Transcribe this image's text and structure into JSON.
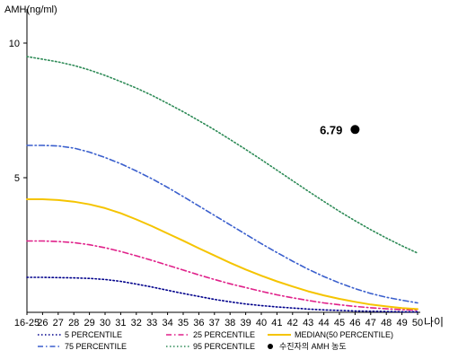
{
  "chart_data": {
    "type": "line",
    "ylabel": "AMH(ng/ml)",
    "xlabel": "나이",
    "ylim": [
      0,
      11
    ],
    "yticks": [
      5,
      10
    ],
    "categories": [
      "16-25",
      "26",
      "27",
      "28",
      "29",
      "30",
      "31",
      "32",
      "33",
      "34",
      "35",
      "36",
      "37",
      "38",
      "39",
      "40",
      "41",
      "42",
      "43",
      "44",
      "45",
      "46",
      "47",
      "48",
      "49",
      "50"
    ],
    "grid": false,
    "legend_position": "bottom",
    "series": [
      {
        "name": "5 PERCENTILE",
        "color": "#00008b",
        "dash": "dotted",
        "values": [
          1.3,
          1.3,
          1.29,
          1.28,
          1.26,
          1.22,
          1.15,
          1.05,
          0.94,
          0.82,
          0.7,
          0.59,
          0.48,
          0.39,
          0.31,
          0.25,
          0.2,
          0.16,
          0.12,
          0.09,
          0.07,
          0.05,
          0.04,
          0.03,
          0.02,
          0.02
        ]
      },
      {
        "name": "25 PERCENTILE",
        "color": "#e0218a",
        "dash": "dashdot",
        "values": [
          2.65,
          2.65,
          2.63,
          2.59,
          2.51,
          2.4,
          2.26,
          2.1,
          1.93,
          1.75,
          1.57,
          1.39,
          1.22,
          1.06,
          0.92,
          0.78,
          0.65,
          0.54,
          0.44,
          0.35,
          0.28,
          0.22,
          0.17,
          0.13,
          0.1,
          0.08
        ]
      },
      {
        "name": "MEDIAN(50 PERCENTILE)",
        "color": "#f5c400",
        "dash": "solid",
        "values": [
          4.2,
          4.2,
          4.17,
          4.11,
          4.01,
          3.87,
          3.68,
          3.45,
          3.2,
          2.93,
          2.66,
          2.38,
          2.11,
          1.84,
          1.59,
          1.36,
          1.15,
          0.96,
          0.78,
          0.63,
          0.5,
          0.39,
          0.29,
          0.22,
          0.16,
          0.12
        ]
      },
      {
        "name": "75 PERCENTILE",
        "color": "#3a5fcd",
        "dash": "dashdot",
        "values": [
          6.2,
          6.2,
          6.18,
          6.1,
          5.95,
          5.75,
          5.52,
          5.25,
          4.96,
          4.64,
          4.3,
          3.95,
          3.6,
          3.25,
          2.9,
          2.55,
          2.22,
          1.9,
          1.6,
          1.33,
          1.09,
          0.88,
          0.7,
          0.56,
          0.45,
          0.35
        ]
      },
      {
        "name": "95 PERCENTILE",
        "color": "#2e8b57",
        "dash": "dotted",
        "values": [
          9.5,
          9.4,
          9.3,
          9.17,
          9.0,
          8.8,
          8.57,
          8.33,
          8.06,
          7.76,
          7.45,
          7.12,
          6.78,
          6.42,
          6.05,
          5.67,
          5.28,
          4.89,
          4.5,
          4.12,
          3.75,
          3.4,
          3.07,
          2.76,
          2.47,
          2.2
        ]
      }
    ],
    "marker": {
      "name": "수진자의 AMH 농도",
      "x": "46",
      "y": 6.79,
      "label": "6.79",
      "color": "#000000"
    },
    "legend": [
      {
        "label": "5 PERCENTILE",
        "series": 0
      },
      {
        "label": "25 PERCENTILE",
        "series": 1
      },
      {
        "label": "MEDIAN(50 PERCENTILE)",
        "series": 2
      },
      {
        "label": "75 PERCENTILE",
        "series": 3
      },
      {
        "label": "95 PERCENTILE",
        "series": 4
      },
      {
        "label": "수진자의 AMH 농도",
        "marker": true
      }
    ]
  }
}
